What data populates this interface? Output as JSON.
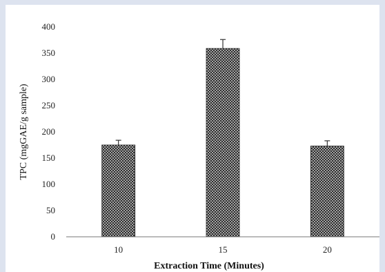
{
  "chart_data": {
    "type": "bar",
    "title": "",
    "xlabel": "Extraction Time (Minutes)",
    "ylabel": "TPC (mgGAE/g sample)",
    "categories": [
      "10",
      "15",
      "20"
    ],
    "series": [
      {
        "values": [
          175,
          359,
          173
        ],
        "error": [
          9,
          17,
          10
        ]
      }
    ],
    "ylim": [
      0,
      400
    ],
    "yticks": [
      0,
      50,
      100,
      150,
      200,
      250,
      300,
      350,
      400
    ],
    "grid": false,
    "legend": "none",
    "colors": {
      "bar_fill": "#2b2b2b",
      "bar_pattern_bg": "#f2f2f2",
      "axis": "#777777",
      "error_bar": "#333333"
    }
  }
}
